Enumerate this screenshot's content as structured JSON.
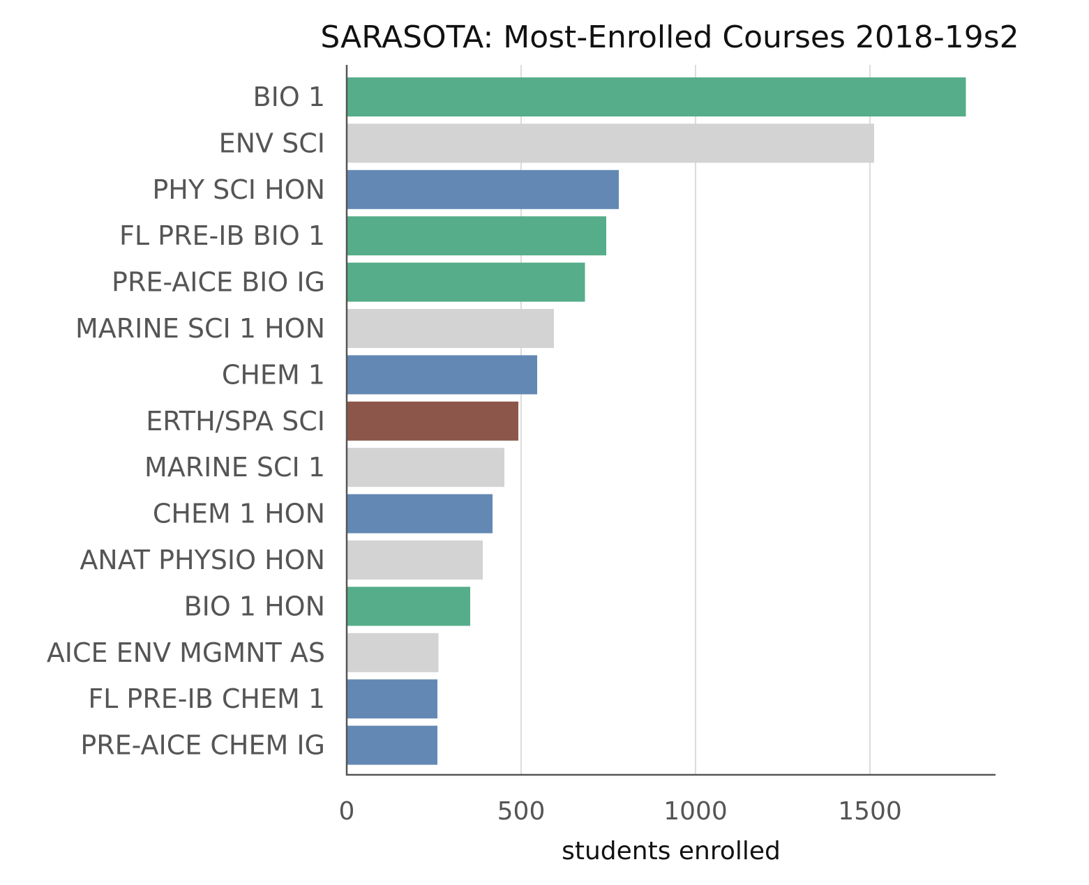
{
  "chart_data": {
    "type": "bar",
    "orientation": "horizontal",
    "title": "SARASOTA: Most-Enrolled Courses 2018-19s2",
    "xlabel": "students enrolled",
    "ylabel": "",
    "xlim": [
      0,
      1860
    ],
    "xticks": [
      0,
      500,
      1000,
      1500
    ],
    "xtick_labels": [
      "0",
      "500",
      "1000",
      "1500"
    ],
    "grid": "vertical lines on",
    "legend": "none",
    "categories": [
      "BIO 1",
      "ENV SCI",
      "PHY SCI HON",
      "FL PRE-IB BIO 1",
      "PRE-AICE BIO IG",
      "MARINE SCI 1 HON",
      "CHEM 1",
      "ERTH/SPA SCI",
      "MARINE SCI 1",
      "CHEM 1 HON",
      "ANAT PHYSIO HON",
      "BIO 1 HON",
      "AICE ENV MGMNT AS",
      "FL PRE-IB CHEM 1",
      "PRE-AICE CHEM IG"
    ],
    "values": [
      1775,
      1512,
      780,
      744,
      683,
      594,
      546,
      492,
      452,
      418,
      390,
      354,
      263,
      260,
      260
    ],
    "colors": [
      "#55ad89",
      "#d3d3d3",
      "#6388b4",
      "#55ad89",
      "#55ad89",
      "#d3d3d3",
      "#6388b4",
      "#8c564b",
      "#d3d3d3",
      "#6388b4",
      "#d3d3d3",
      "#55ad89",
      "#d3d3d3",
      "#6388b4",
      "#6388b4"
    ]
  }
}
